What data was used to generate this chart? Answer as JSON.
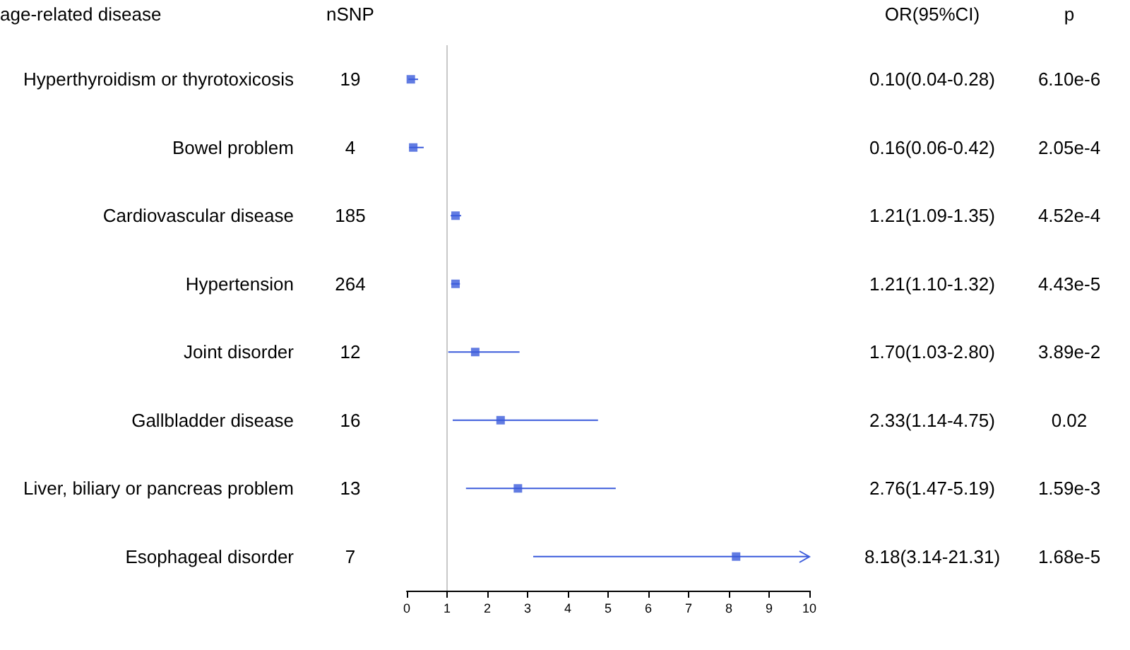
{
  "chart_data": {
    "type": "scatter",
    "orientation": "horizontal",
    "categories": [
      "Hyperthyroidism or thyrotoxicosis",
      "Bowel problem",
      "Cardiovascular disease",
      "Hypertension",
      "Joint disorder",
      "Gallbladder disease",
      "Liver, biliary or pancreas problem",
      "Esophageal disorder"
    ],
    "values": [
      0.1,
      0.16,
      1.21,
      1.21,
      1.7,
      2.33,
      2.76,
      8.18
    ],
    "errors": [
      [
        0.04,
        0.28
      ],
      [
        0.06,
        0.42
      ],
      [
        1.09,
        1.35
      ],
      [
        1.1,
        1.32
      ],
      [
        1.03,
        2.8
      ],
      [
        1.14,
        4.75
      ],
      [
        1.47,
        5.19
      ],
      [
        3.14,
        10
      ]
    ],
    "value_labels": [
      "0.10(0.04-0.28)",
      "0.16(0.06-0.42)",
      "1.21(1.09-1.35)",
      "1.21(1.10-1.32)",
      "1.70(1.03-2.80)",
      "2.33(1.14-4.75)",
      "2.76(1.47-5.19)",
      "8.18(3.14-21.31)"
    ],
    "color": "#3b5bdb",
    "marker": "square",
    "xlim": [
      0,
      10
    ],
    "xticks": [
      0,
      1,
      2,
      3,
      4,
      5,
      6,
      7,
      8,
      9,
      10
    ],
    "ref_lines": [
      {
        "axis": "x",
        "value": 1,
        "color": "#c8c8c8"
      }
    ],
    "annotations": [
      "age-related disease",
      "nSNP",
      "OR(95%CI)",
      "p",
      "19",
      "4",
      "185",
      "264",
      "12",
      "16",
      "13",
      "7",
      "6.10e-6",
      "2.05e-4",
      "4.52e-4",
      "4.43e-5",
      "3.89e-2",
      "0.02",
      "1.59e-3",
      "1.68e-5"
    ],
    "grid": false,
    "legend": false
  }
}
